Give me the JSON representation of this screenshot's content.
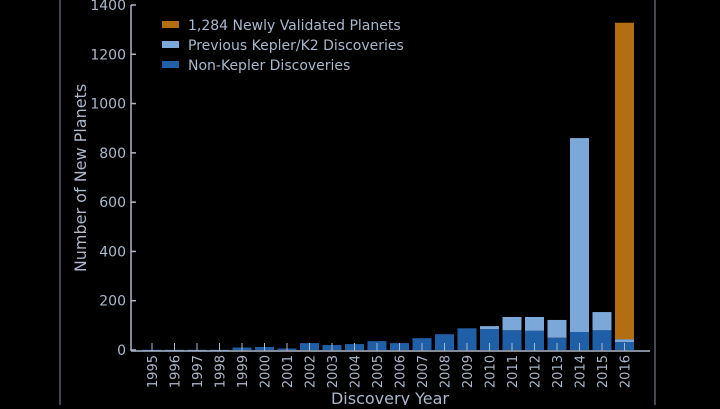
{
  "chart_data": {
    "type": "bar",
    "stacked": true,
    "title": "",
    "xlabel": "Discovery Year",
    "ylabel": "Number of New Planets",
    "ylim": [
      0,
      1400
    ],
    "yticks": [
      0,
      200,
      400,
      600,
      800,
      1000,
      1200,
      1400
    ],
    "legend_position": "top-left",
    "categories": [
      "1995",
      "1996",
      "1997",
      "1998",
      "1999",
      "2000",
      "2001",
      "2002",
      "2003",
      "2004",
      "2005",
      "2006",
      "2007",
      "2008",
      "2009",
      "2010",
      "2011",
      "2012",
      "2013",
      "2014",
      "2015",
      "2016"
    ],
    "series": [
      {
        "name": "Non-Kepler Discoveries",
        "color": "#1f5fa8",
        "values": [
          1,
          1,
          1,
          1,
          10,
          12,
          6,
          28,
          20,
          24,
          36,
          28,
          48,
          64,
          88,
          85,
          80,
          78,
          50,
          73,
          80,
          32
        ]
      },
      {
        "name": "Previous Kepler/K2 Discoveries",
        "color": "#7ba7d9",
        "values": [
          0,
          0,
          0,
          0,
          0,
          0,
          0,
          0,
          0,
          0,
          0,
          0,
          0,
          0,
          0,
          12,
          54,
          56,
          72,
          787,
          74,
          12
        ]
      },
      {
        "name": "1,284 Newly Validated Planets",
        "color": "#b36e12",
        "values": [
          0,
          0,
          0,
          0,
          0,
          0,
          0,
          0,
          0,
          0,
          0,
          0,
          0,
          0,
          0,
          0,
          0,
          0,
          0,
          0,
          0,
          1284
        ]
      }
    ],
    "legend_order": [
      2,
      1,
      0
    ]
  }
}
